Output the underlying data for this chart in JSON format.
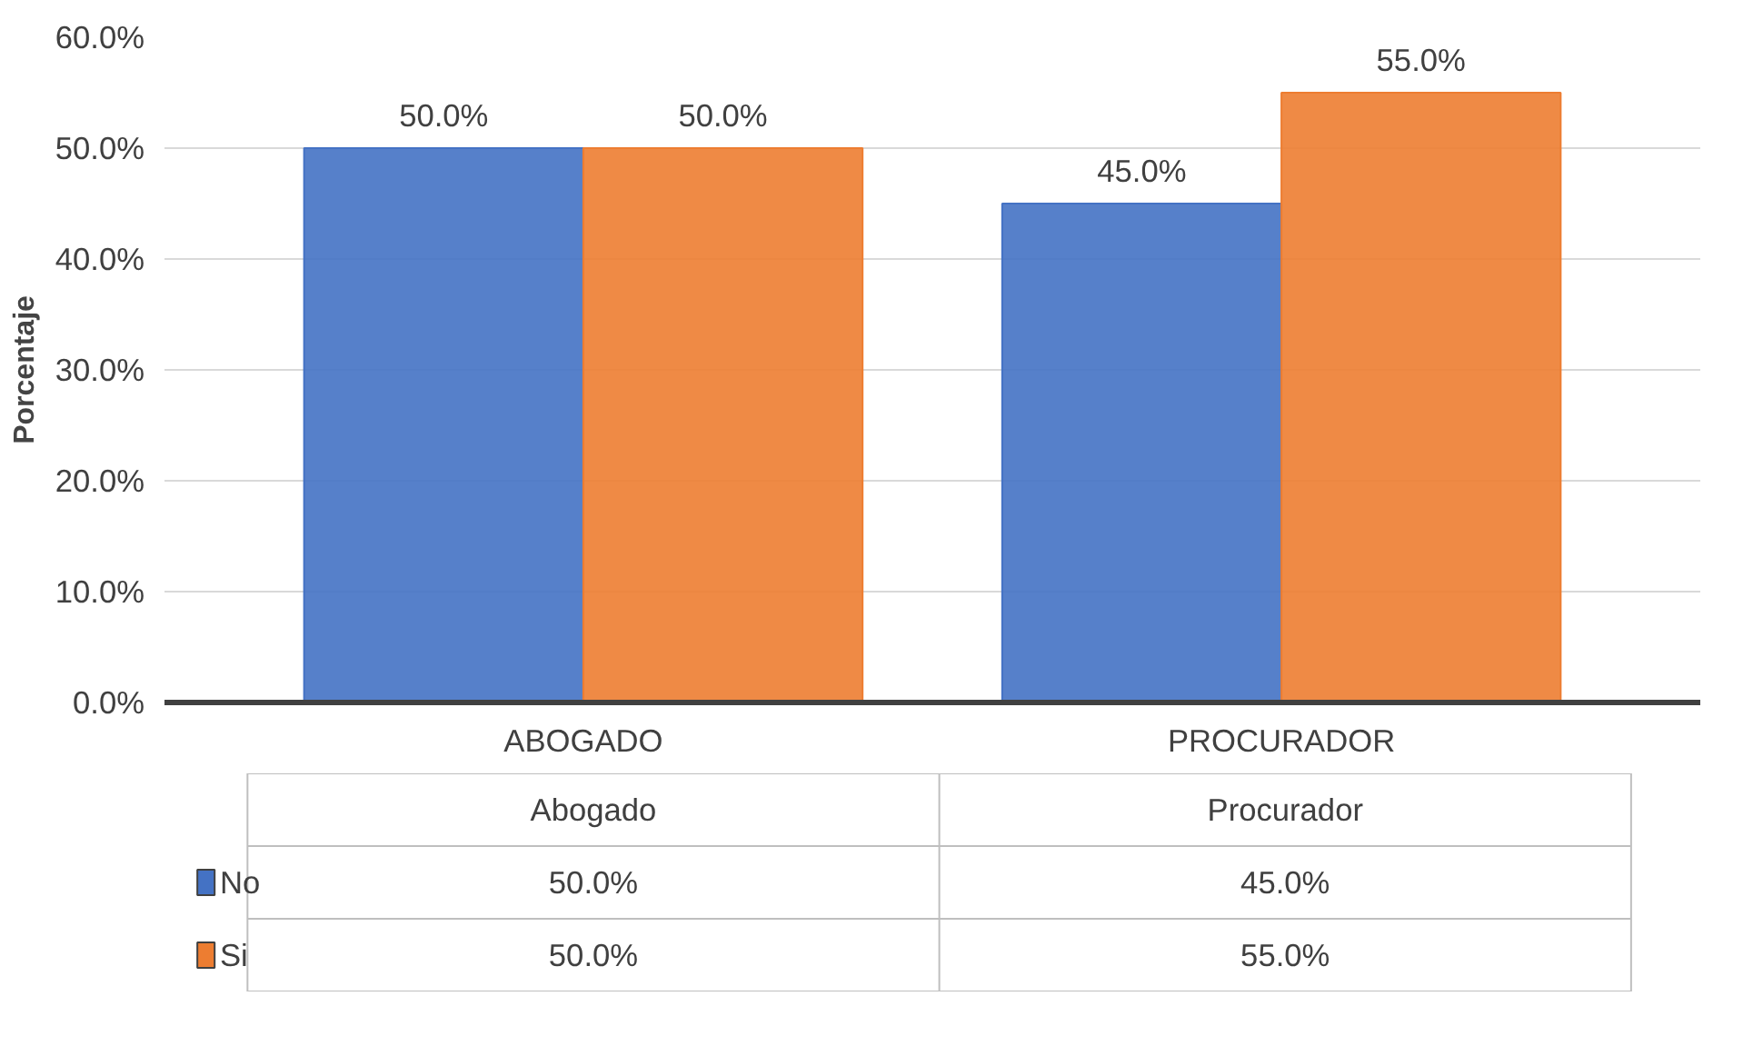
{
  "chart_data": {
    "type": "bar",
    "ylabel": "Porcentaje",
    "categories": [
      "ABOGADO",
      "PROCURADOR"
    ],
    "series": [
      {
        "name": "No",
        "color": "#4472c4",
        "values": [
          50,
          45
        ],
        "value_labels": [
          "50.0%",
          "45.0%"
        ]
      },
      {
        "name": "Si",
        "color": "#ed7d31",
        "values": [
          50,
          55
        ],
        "value_labels": [
          "50.0%",
          "55.0%"
        ]
      }
    ],
    "ylim": [
      0,
      60
    ],
    "yticks": [
      {
        "value": 0,
        "label": "0.0%"
      },
      {
        "value": 10,
        "label": "10.0%"
      },
      {
        "value": 20,
        "label": "20.0%"
      },
      {
        "value": 30,
        "label": "30.0%"
      },
      {
        "value": 40,
        "label": "40.0%"
      },
      {
        "value": 50,
        "label": "50.0%"
      },
      {
        "value": 60,
        "label": "60.0%"
      }
    ],
    "grid": "y",
    "legend": "bottom",
    "annotations": [
      "Abogado",
      "Procurador"
    ]
  }
}
